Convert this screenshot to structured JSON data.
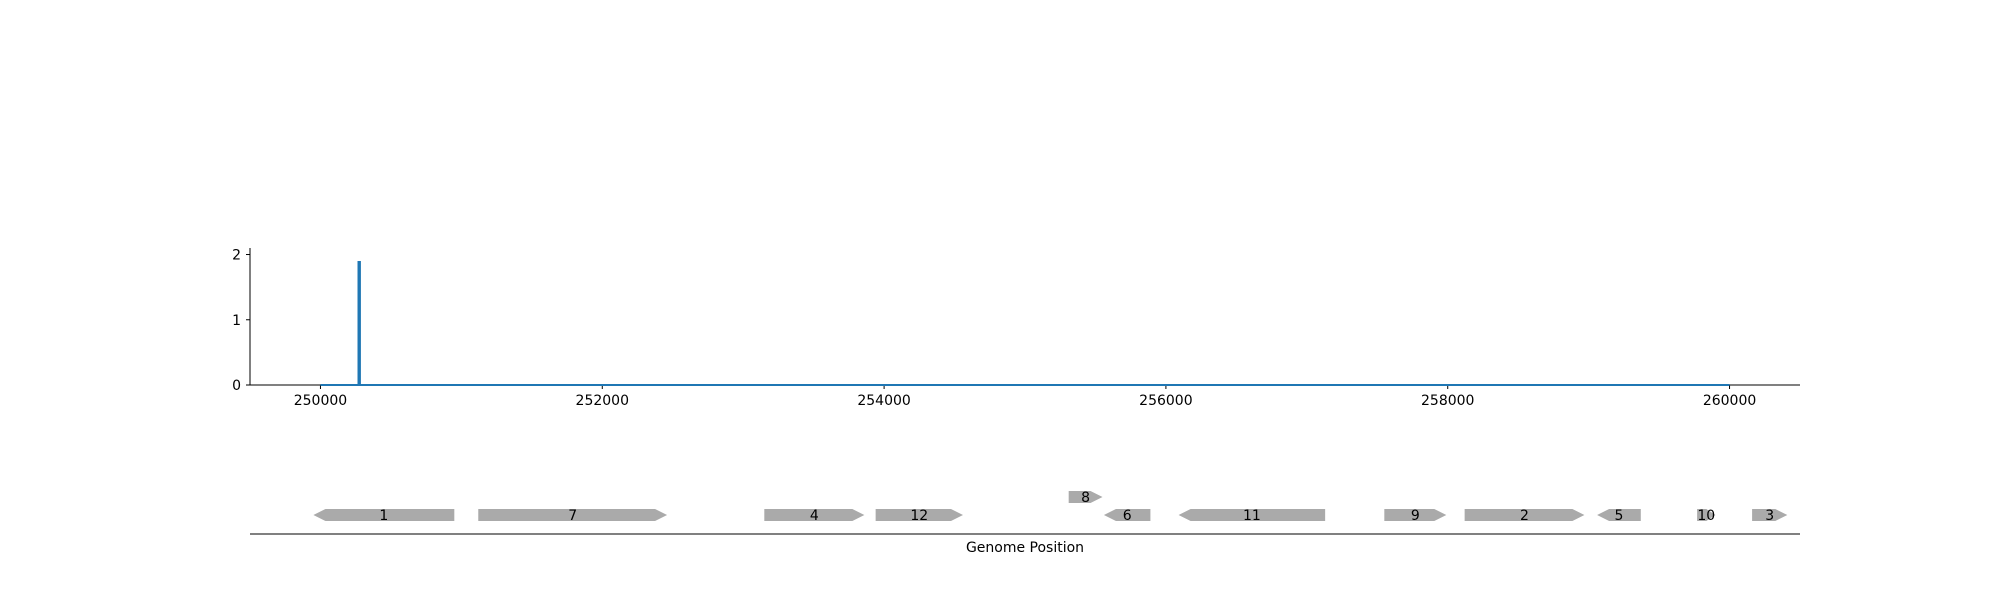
{
  "chart_data": [
    {
      "type": "line",
      "xlim": [
        249500,
        260500
      ],
      "ylim": [
        0,
        2.1
      ],
      "x_ticks": [
        250000,
        252000,
        254000,
        256000,
        258000,
        260000
      ],
      "y_ticks": [
        0,
        1,
        2
      ],
      "x_tick_labels": [
        "250000",
        "252000",
        "254000",
        "256000",
        "258000",
        "260000"
      ],
      "y_tick_labels": [
        "0",
        "1",
        "2"
      ],
      "grid": false,
      "series": [
        {
          "color": "#1f77b4",
          "x": [
            250000,
            250270,
            250270,
            250270,
            250280,
            250280,
            250280,
            260000
          ],
          "y": [
            0,
            0,
            1.9,
            0,
            0,
            1.9,
            0,
            0
          ]
        }
      ]
    },
    {
      "type": "gene_map",
      "xlabel": "Genome Position",
      "xlim": [
        249500,
        260500
      ],
      "gene_color": "#aaaaaa",
      "genes": [
        {
          "label": "1",
          "start": 249950,
          "end": 250950,
          "strand": "-",
          "track": 0
        },
        {
          "label": "7",
          "start": 251120,
          "end": 252460,
          "strand": "+",
          "track": 0
        },
        {
          "label": "4",
          "start": 253150,
          "end": 253860,
          "strand": "+",
          "track": 0
        },
        {
          "label": "12",
          "start": 253940,
          "end": 254560,
          "strand": "+",
          "track": 0
        },
        {
          "label": "8",
          "start": 255310,
          "end": 255550,
          "strand": "+",
          "track": 1
        },
        {
          "label": "6",
          "start": 255560,
          "end": 255890,
          "strand": "-",
          "track": 0
        },
        {
          "label": "11",
          "start": 256090,
          "end": 257130,
          "strand": "-",
          "track": 0
        },
        {
          "label": "9",
          "start": 257550,
          "end": 257990,
          "strand": "+",
          "track": 0
        },
        {
          "label": "2",
          "start": 258120,
          "end": 258970,
          "strand": "+",
          "track": 0
        },
        {
          "label": "5",
          "start": 259060,
          "end": 259370,
          "strand": "-",
          "track": 0
        },
        {
          "label": "10",
          "start": 259770,
          "end": 259900,
          "strand": "+",
          "track": 0
        },
        {
          "label": "3",
          "start": 260160,
          "end": 260410,
          "strand": "+",
          "track": 0
        }
      ]
    }
  ]
}
